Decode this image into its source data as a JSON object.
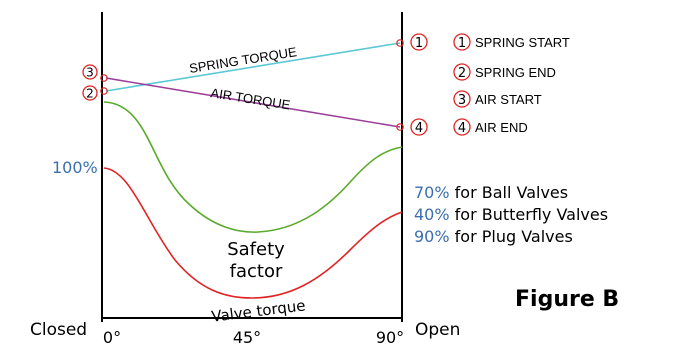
{
  "figure_label": "Figure B",
  "line_labels": {
    "spring_torque": "SPRING TORQUE",
    "air_torque": "AIR TORQUE"
  },
  "curve_labels": {
    "safety_factor_line1": "Safety",
    "safety_factor_line2": "factor",
    "valve_torque": "Valve torque"
  },
  "axis": {
    "left_label": "Closed",
    "right_label": "Open",
    "ticks": [
      "0°",
      "45°",
      "90°"
    ]
  },
  "percent_left": "100%",
  "valve_notes": [
    {
      "pct": "70%",
      "text": " for Ball Valves"
    },
    {
      "pct": "40%",
      "text": " for Butterfly Valves"
    },
    {
      "pct": "90%",
      "text": " for Plug Valves"
    }
  ],
  "markers": {
    "m1": "1",
    "m2": "2",
    "m3": "3",
    "m4": "4"
  },
  "legend": [
    {
      "num": "1",
      "label": "SPRING START"
    },
    {
      "num": "2",
      "label": "SPRING END"
    },
    {
      "num": "3",
      "label": "AIR START"
    },
    {
      "num": "4",
      "label": "AIR END"
    }
  ],
  "colors": {
    "spring_line": "#5bc8d6",
    "air_line": "#9b3f9b",
    "safety_curve": "#5aaa2c",
    "valve_curve": "#e02424",
    "marker": "#e02424",
    "percent_text": "#3a6fb0"
  }
}
